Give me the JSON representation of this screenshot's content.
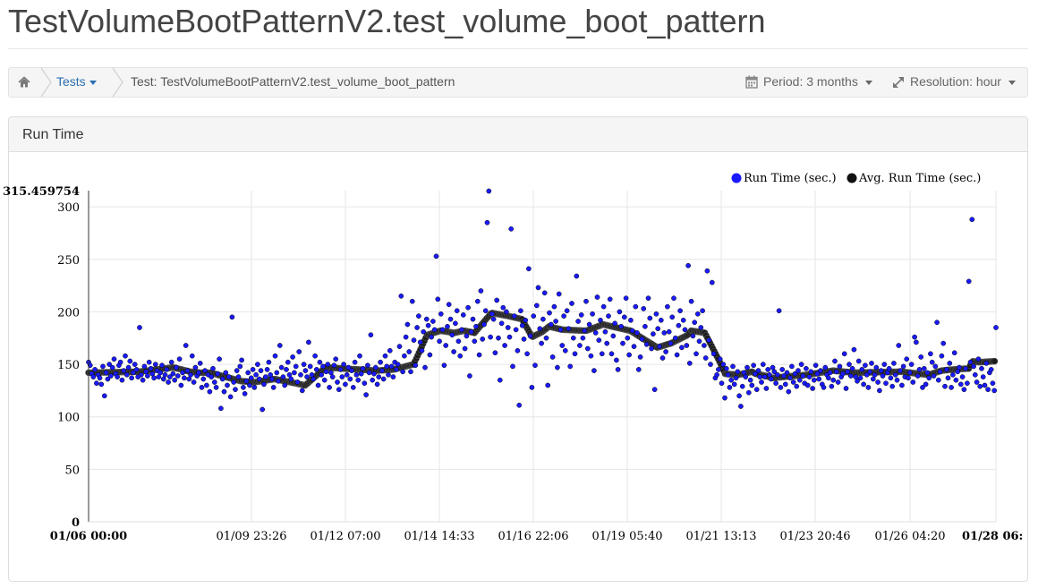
{
  "page": {
    "title": "TestVolumeBootPatternV2.test_volume_boot_pattern"
  },
  "breadcrumb": {
    "home_icon": "home-icon",
    "tests_label": "Tests",
    "current_label": "Test: TestVolumeBootPatternV2.test_volume_boot_pattern",
    "period_label": "Period: 3 months",
    "resolution_label": "Resolution: hour",
    "period_icon": "calendar-icon",
    "resolution_icon": "expand-icon"
  },
  "panel": {
    "title": "Run Time"
  },
  "colors": {
    "run_time": "#1a1aff",
    "avg_run_time": "#111111",
    "link": "#2a6fb0"
  },
  "chart_data": {
    "type": "scatter",
    "title": "",
    "xlabel": "",
    "ylabel": "",
    "ylim": [
      0,
      315.459754
    ],
    "y_max_label": "315.459754",
    "y_ticks": [
      0,
      50,
      100,
      150,
      200,
      250,
      300
    ],
    "x_range_hours": [
      0,
      536
    ],
    "x_ticks": [
      {
        "label": "01/06 00:00",
        "bold": true
      },
      {
        "label": "01/09 23:26",
        "bold": false
      },
      {
        "label": "01/12 07:00",
        "bold": false
      },
      {
        "label": "01/14 14:33",
        "bold": false
      },
      {
        "label": "01/16 22:06",
        "bold": false
      },
      {
        "label": "01/19 05:40",
        "bold": false
      },
      {
        "label": "01/21 13:13",
        "bold": false
      },
      {
        "label": "01/23 20:46",
        "bold": false
      },
      {
        "label": "01/26 04:20",
        "bold": false
      },
      {
        "label": "01/28 06:",
        "bold": true
      }
    ],
    "legend_position": "top-right",
    "grid": true,
    "series": [
      {
        "name": "Run Time (sec.)",
        "color": "#1a1aff",
        "y": [
          152,
          149,
          141,
          138,
          145,
          132,
          140,
          137,
          131,
          148,
          120,
          142,
          136,
          150,
          139,
          147,
          155,
          141,
          138,
          149,
          152,
          135,
          144,
          158,
          140,
          147,
          153,
          137,
          142,
          150,
          145,
          138,
          185,
          140,
          135,
          148,
          143,
          139,
          152,
          146,
          141,
          137,
          150,
          144,
          138,
          142,
          149,
          136,
          140,
          145,
          133,
          138,
          152,
          141,
          135,
          147,
          139,
          155,
          130,
          142,
          137,
          168,
          144,
          136,
          140,
          158,
          133,
          147,
          139,
          142,
          151,
          128,
          136,
          144,
          130,
          140,
          124,
          138,
          146,
          133,
          128,
          141,
          155,
          108,
          136,
          124,
          142,
          130,
          138,
          119,
          195,
          133,
          126,
          144,
          138,
          148,
          154,
          128,
          122,
          134,
          142,
          130,
          137,
          145,
          128,
          140,
          150,
          136,
          144,
          107,
          131,
          138,
          145,
          152,
          140,
          136,
          128,
          158,
          142,
          134,
          168,
          147,
          138,
          130,
          145,
          152,
          140,
          136,
          157,
          142,
          148,
          133,
          162,
          140,
          125,
          150,
          144,
          138,
          171,
          148,
          140,
          136,
          158,
          145,
          130,
          152,
          140,
          148,
          135,
          143,
          150,
          128,
          142,
          138,
          149,
          155,
          133,
          126,
          145,
          138,
          150,
          131,
          140,
          147,
          136,
          144,
          128,
          152,
          140,
          135,
          158,
          141,
          146,
          132,
          121,
          149,
          142,
          178,
          135,
          141,
          147,
          131,
          138,
          152,
          144,
          136,
          158,
          148,
          140,
          163,
          148,
          138,
          152,
          145,
          150,
          167,
          215,
          143,
          158,
          176,
          188,
          162,
          143,
          210,
          173,
          149,
          185,
          196,
          171,
          163,
          181,
          147,
          193,
          187,
          159,
          176,
          191,
          183,
          253,
          212,
          172,
          198,
          183,
          149,
          168,
          186,
          207,
          193,
          178,
          162,
          189,
          201,
          172,
          158,
          183,
          197,
          165,
          177,
          204,
          139,
          181,
          193,
          172,
          186,
          210,
          159,
          220,
          174,
          188,
          201,
          285,
          315,
          176,
          198,
          193,
          161,
          211,
          175,
          135,
          189,
          204,
          168,
          200,
          185,
          176,
          279,
          148,
          196,
          183,
          163,
          111,
          201,
          187,
          174,
          192,
          160,
          241,
          177,
          128,
          196,
          149,
          206,
          223,
          184,
          170,
          193,
          218,
          175,
          130,
          199,
          188,
          157,
          205,
          191,
          147,
          217,
          183,
          168,
          196,
          163,
          201,
          184,
          148,
          208,
          175,
          160,
          234,
          191,
          168,
          197,
          175,
          182,
          210,
          165,
          188,
          158,
          198,
          144,
          180,
          214,
          173,
          192,
          160,
          205,
          181,
          170,
          196,
          212,
          160,
          177,
          189,
          154,
          145,
          200,
          186,
          170,
          195,
          213,
          175,
          159,
          192,
          182,
          167,
          205,
          180,
          145,
          157,
          174,
          203,
          186,
          169,
          213,
          194,
          165,
          179,
          126,
          198,
          184,
          167,
          192,
          156,
          180,
          162,
          205,
          181,
          170,
          195,
          213,
          175,
          159,
          187,
          201,
          166,
          192,
          183,
          168,
          244,
          151,
          210,
          177,
          190,
          160,
          198,
          172,
          185,
          201,
          168,
          156,
          239,
          173,
          150,
          228,
          160,
          137,
          140,
          145,
          155,
          132,
          150,
          118,
          146,
          140,
          128,
          135,
          148,
          131,
          137,
          143,
          120,
          110,
          129,
          142,
          138,
          147,
          123,
          135,
          130,
          149,
          141,
          126,
          144,
          138,
          133,
          150,
          138,
          127,
          145,
          140,
          136,
          147,
          143,
          132,
          140,
          201,
          128,
          145,
          139,
          131,
          142,
          124,
          137,
          148,
          133,
          141,
          129,
          144,
          135,
          150,
          139,
          132,
          146,
          130,
          138,
          143,
          127,
          135,
          149,
          141,
          136,
          144,
          131,
          128,
          147,
          140,
          137,
          142,
          129,
          135,
          153,
          143,
          133,
          148,
          138,
          141,
          160,
          127,
          143,
          150,
          139,
          146,
          164,
          138,
          134,
          153,
          137,
          145,
          131,
          149,
          140,
          128,
          143,
          151,
          136,
          140,
          147,
          133,
          125,
          144,
          139,
          150,
          132,
          142,
          146,
          137,
          129,
          151,
          140,
          135,
          168,
          144,
          130,
          148,
          138,
          155,
          137,
          142,
          150,
          133,
          176,
          171,
          139,
          145,
          157,
          128,
          146,
          131,
          142,
          137,
          160,
          152,
          139,
          148,
          190,
          135,
          143,
          158,
          170,
          129,
          145,
          137,
          151,
          128,
          140,
          161,
          135,
          143,
          147,
          131,
          138,
          126,
          146,
          132,
          229,
          152,
          288,
          148,
          140,
          133,
          155,
          129,
          146,
          138,
          130,
          151,
          126,
          142,
          145,
          132,
          125,
          185
        ]
      },
      {
        "name": "Avg. Run Time (sec.)",
        "color": "#111111",
        "x": [
          0,
          30,
          50,
          60,
          66,
          72,
          90,
          98,
          110,
          128,
          140,
          170,
          180,
          192,
          196,
          200,
          208,
          216,
          222,
          228,
          238,
          248,
          256,
          262,
          268,
          272,
          280,
          294,
          304,
          320,
          336,
          344,
          354,
          356,
          364,
          372,
          376,
          384,
          392,
          394,
          400,
          404,
          424,
          440,
          452,
          480,
          496,
          504,
          510,
          520,
          522,
          526,
          536
        ],
        "y": [
          142,
          143,
          147,
          143,
          142,
          142,
          134,
          133,
          136,
          130,
          147,
          144,
          145,
          150,
          164,
          178,
          182,
          180,
          182,
          180,
          199,
          196,
          193,
          176,
          181,
          186,
          183,
          182,
          188,
          182,
          166,
          170,
          178,
          182,
          180,
          155,
          141,
          140,
          143,
          141,
          139,
          137,
          140,
          144,
          142,
          143,
          140,
          144,
          145,
          146,
          153,
          152,
          153
        ]
      }
    ]
  }
}
